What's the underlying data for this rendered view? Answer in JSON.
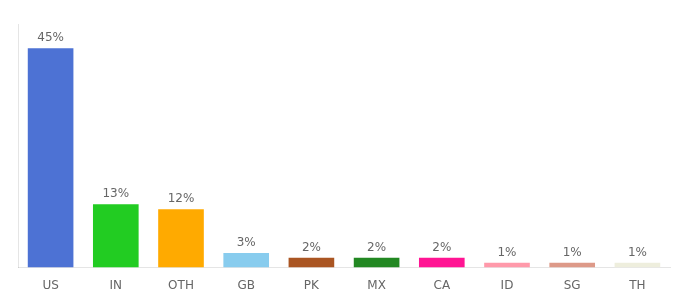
{
  "chart_data": {
    "type": "bar",
    "categories": [
      "US",
      "IN",
      "OTH",
      "GB",
      "PK",
      "MX",
      "CA",
      "ID",
      "SG",
      "TH"
    ],
    "values": [
      45,
      13,
      12,
      3,
      2,
      2,
      2,
      1,
      1,
      1
    ],
    "value_labels": [
      "45%",
      "13%",
      "12%",
      "3%",
      "2%",
      "2%",
      "2%",
      "1%",
      "1%",
      "1%"
    ],
    "colors": [
      "#4d72d4",
      "#22cc22",
      "#ffaa00",
      "#88ccee",
      "#aa5522",
      "#228822",
      "#ff1493",
      "#ff99aa",
      "#dd9988",
      "#eeeedd"
    ],
    "ylim": [
      0,
      50
    ],
    "grid": false,
    "data_labels": true,
    "tick_labels": "x"
  }
}
